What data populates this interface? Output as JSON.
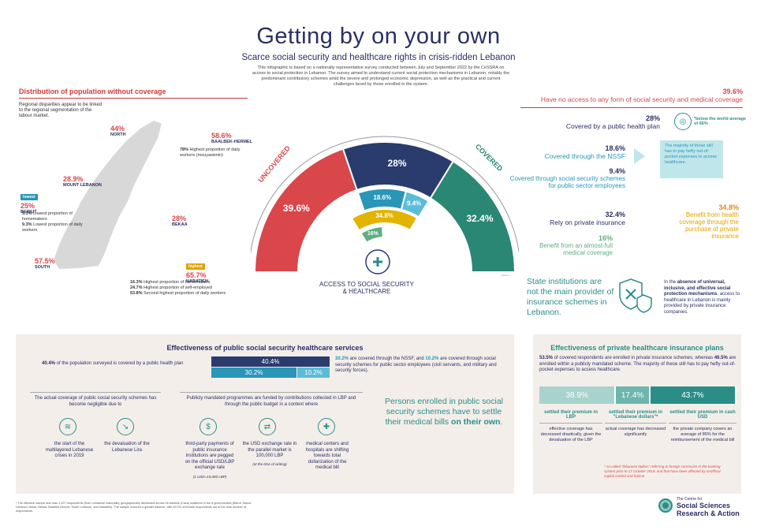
{
  "header": {
    "title": "Getting by on your own",
    "subtitle": "Scarce social security and healthcare rights in crisis-ridden Lebanon",
    "intro": "This infographic is based on a nationally representative survey conducted between July and September 2022 by the CeSSRA on access to social protection in Lebanon. The survey aimed to understand current social protection mechanisms in Lebanon, notably the predominant contributory schemes amid the severe and prolonged economic depression, as well as the practical and current challenges faced by those enrolled in the system."
  },
  "map_section": {
    "title": "Distribution of population without coverage",
    "description": "Regional disparities appear to be linked to the regional segmentation of the labour market.",
    "regions": [
      {
        "pct": "44%",
        "name": "NORTH"
      },
      {
        "pct": "58.6%",
        "name": "BAALBEK-HERMEL",
        "note_pct": "78%",
        "note": "Highest proportion of daily workers (mouyawimin)"
      },
      {
        "pct": "28.9%",
        "name": "MOUNT LEBANON"
      },
      {
        "pct": "25%",
        "name": "BEIRUT",
        "tag": "lowest",
        "notes": [
          {
            "pct": "5.3%",
            "text": "Lowest proportion of homemakers"
          },
          {
            "pct": "9.3%",
            "text": "Lowest proportion of daily workers"
          }
        ]
      },
      {
        "pct": "28%",
        "name": "BEKAA"
      },
      {
        "pct": "57.5%",
        "name": "SOUTH"
      },
      {
        "pct": "65.7%",
        "name": "NABATIEH",
        "tag": "highest",
        "notes": [
          {
            "pct": "16.3%",
            "text": "Highest proportion of homemakers"
          },
          {
            "pct": "24.7%",
            "text": "Highest proportion of self-employed"
          },
          {
            "pct": "53.8%",
            "text": "Second highest proportion of daily workers"
          }
        ]
      }
    ]
  },
  "gauge": {
    "label_uncovered": "UNCOVERED",
    "label_covered": "COVERED",
    "center_label": "ACCESS TO SOCIAL SECURITY & HEALTHCARE",
    "source": "Source",
    "segments": [
      {
        "label": "39.6%",
        "value": 39.6,
        "color": "#d9474a"
      },
      {
        "label": "28%",
        "value": 28,
        "color": "#2a3b6e"
      },
      {
        "label": "32.4%",
        "value": 32.4,
        "color": "#2a8774"
      }
    ],
    "inner": [
      {
        "label": "18.6%",
        "value": 18.6,
        "color": "#2996b8"
      },
      {
        "label": "9.4%",
        "value": 9.4,
        "color": "#5bbcd6"
      }
    ],
    "private": {
      "label": "34.8%",
      "value": 34.8,
      "color": "#e2b400"
    },
    "almost_full": {
      "label": "16%",
      "value": 16,
      "color": "#5fae82"
    }
  },
  "right": {
    "uncovered_pct": "39.6%",
    "uncovered_text": "Have no access to any form of social security and medical coverage",
    "public_pct": "28%",
    "public_text": "Covered by a  public health plan",
    "world_note": "*below the world average of 66%",
    "nssf_pct": "18.6%",
    "nssf_text": "Covered through the NSSF",
    "sector_pct": "9.4%",
    "sector_text": "Covered through social security schemes for public sector employees",
    "majority_note": "The majority of these still has to pay hefty out-of-pocket expenses to access healthcare.",
    "private_pct": "32.4%",
    "private_text": "Rely on private insurance",
    "benefit_pct": "34.8%",
    "benefit_text": "Benefit from health coverage through the purchase of private insurance",
    "full_pct": "16%",
    "full_text": "Benefit from an almost-full medical coverage",
    "state_text": "State institutions are not the main provider of insurance schemes in Lebanon.",
    "absence_prefix": "In the ",
    "absence_bold": "absence of universal, inclusive, and  effective social protection mechanisms",
    "absence_suffix": ", access to healthcare in Lebanon is mainly provided by private insurance companies."
  },
  "public_section": {
    "title": "Effectiveness of public social security healthcare services",
    "lead_pct": "40.4%",
    "lead_text": " of the population surveyed is covered by a public health plan",
    "bar_top": "40.4%",
    "bar_left": "30.2%",
    "bar_right": "10.2%",
    "desc_pct1": "30.2%",
    "desc_mid": " are covered through the NSSF, and ",
    "desc_pct2": "10.2%",
    "desc_end": " are covered through social security schemes for public sector employees (civil servants, and military and security forces).",
    "col1_title": "The actual coverage of public social security schemes has become negligible due to",
    "col1_items": [
      "the start of the multilayered Lebanese crises in 2019",
      "the devaluation of the Lebanese Lira"
    ],
    "col2_title": "Publicly mandated programmes are funded by contributions collected in LBP and through the public budget in a context where",
    "col2_items": [
      "third-party payments of public insurance institutions are pegged on the official USD/LBP exchange rate",
      "the USD exchange rate in the parallel market is 100,000 LBP",
      "medical centers and hospitals are shifting towards total dollarization of the medical bill"
    ],
    "col2_note1": "(1 USD=15,000 LBP)",
    "col2_note2": "(at the time of writing)",
    "persons_text": "Persons enrolled in public social security schemes have to settle their medical bills ",
    "persons_bold": "on their own",
    "persons_end": "."
  },
  "private_section": {
    "title": "Effectiveness of private healthcare insurance plans",
    "desc_a": "53.5%",
    "desc_b": " of covered respondents are enrolled in private insurance schemes, whereas ",
    "desc_c": "46.5%",
    "desc_d": " are enrolled within a publicly mandated scheme. The majority of these still has to pay hefty out-of-pocket expenses to access healthcare.",
    "bars": [
      {
        "label": "38.9%",
        "value": 38.9,
        "color": "#a8d3cd",
        "head": "settled their premium in LBP",
        "text": "effective coverage has decreased drastically, given the devaluation of the LBP"
      },
      {
        "label": "17.4%",
        "value": 17.4,
        "color": "#6cb6ac",
        "head": "settled their premium in \"Lebanese dollars\"*",
        "text": "actual coverage has decreased  significantly"
      },
      {
        "label": "43.7%",
        "value": 43.7,
        "color": "#2a8e87",
        "head": "settled their premium in cash USD",
        "text": "the private company covers an average of 85% for the reimbursement of the medical bill"
      }
    ],
    "footnote": "* so-called \"lebanese dollars\" referring to foreign currencies in the banking system prior to 17 October 2019, and that have been affected by unofficial capital control and haircut"
  },
  "footer": {
    "note": "* The effective sample size was 1,327 respondents (from Lebanese nationality, geographically distributed across 26 districts (Caza) scattered in the 8 governorates (Beirut, Mount Lebanon, Akkar, Bekaa, Baalbek-Hermel, South Lebanon, and Nabatieh). The sample ensured a greater balance, with 49.3% of female respondents out of the total number of respondents.",
    "org_line1": "The Centre for",
    "org_line2": "Social Sciences",
    "org_line3": "Research & Action"
  }
}
